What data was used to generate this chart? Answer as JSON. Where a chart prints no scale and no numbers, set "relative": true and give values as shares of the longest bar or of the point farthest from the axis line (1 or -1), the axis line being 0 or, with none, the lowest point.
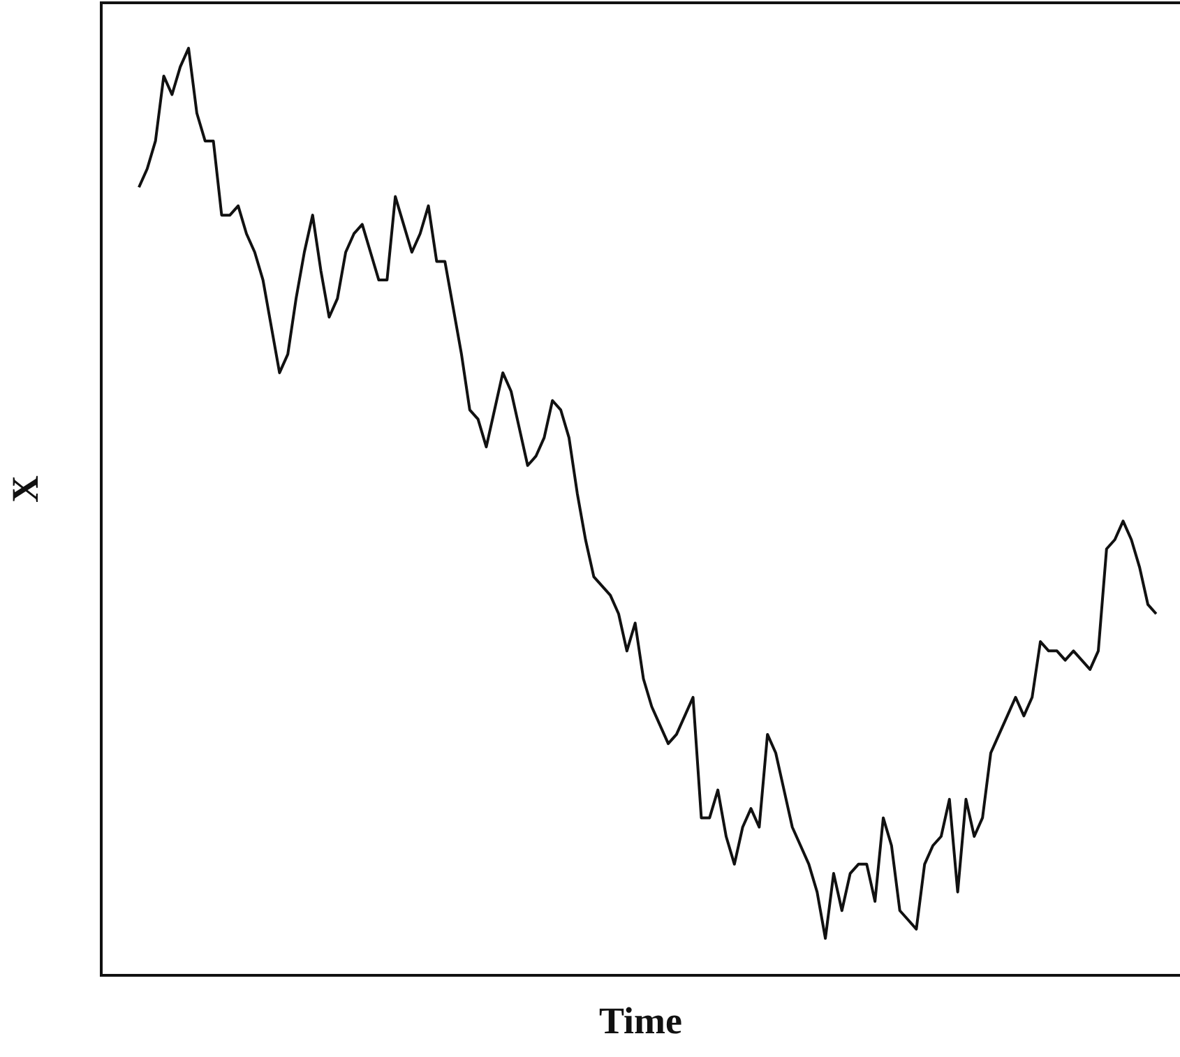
{
  "chart_data": {
    "type": "line",
    "xlabel": "Time",
    "ylabel": "X",
    "relative": true,
    "color": "#111111",
    "categories": [
      null,
      null,
      null,
      null,
      null,
      null,
      null,
      null,
      null,
      null,
      null,
      null,
      null,
      null,
      null,
      null,
      null,
      null,
      null,
      null,
      null,
      null,
      null,
      null,
      null,
      null,
      null,
      null,
      null,
      null,
      null,
      null,
      null,
      null,
      null,
      null,
      null,
      null,
      null,
      null,
      null,
      null,
      null,
      null,
      null,
      null,
      null,
      null,
      null,
      null,
      null,
      null,
      null,
      null,
      null,
      null,
      null,
      null,
      null,
      null,
      null,
      null,
      null,
      null,
      null,
      null,
      null,
      null,
      null,
      null,
      null,
      null,
      null,
      null,
      null,
      null,
      null,
      null,
      null,
      null,
      null,
      null,
      null,
      null,
      null,
      null,
      null,
      null,
      null,
      null,
      null,
      null,
      null,
      null,
      null,
      null,
      null,
      null,
      null,
      null,
      null,
      null,
      null,
      null,
      null,
      null,
      null,
      null,
      null,
      null,
      null,
      null,
      null,
      null,
      null,
      null,
      null,
      null,
      null,
      null,
      null,
      null,
      null,
      null
    ],
    "values": [
      0.85,
      0.87,
      0.9,
      0.97,
      0.95,
      0.98,
      1,
      0.93,
      0.9,
      0.9,
      0.82,
      0.82,
      0.83,
      0.8,
      0.78,
      0.75,
      0.7,
      0.65,
      0.67,
      0.73,
      0.78,
      0.82,
      0.76,
      0.71,
      0.73,
      0.78,
      0.8,
      0.81,
      0.78,
      0.75,
      0.75,
      0.84,
      0.81,
      0.78,
      0.8,
      0.83,
      0.77,
      0.77,
      0.72,
      0.67,
      0.61,
      0.6,
      0.57,
      0.61,
      0.65,
      0.63,
      0.59,
      0.55,
      0.56,
      0.58,
      0.62,
      0.61,
      0.58,
      0.52,
      0.47,
      0.43,
      0.42,
      0.41,
      0.39,
      0.35,
      0.38,
      0.32,
      0.29,
      0.27,
      0.25,
      0.26,
      0.28,
      0.3,
      0.17,
      0.17,
      0.2,
      0.15,
      0.12,
      0.16,
      0.18,
      0.16,
      0.26,
      0.24,
      0.2,
      0.16,
      0.14,
      0.12,
      0.09,
      0.04,
      0.11,
      0.07,
      0.11,
      0.12,
      0.12,
      0.08,
      0.17,
      0.14,
      0.07,
      0.06,
      0.05,
      0.12,
      0.14,
      0.15,
      0.19,
      0.09,
      0.19,
      0.15,
      0.17,
      0.24,
      0.26,
      0.28,
      0.3,
      0.28,
      0.3,
      0.36,
      0.35,
      0.35,
      0.34,
      0.35,
      0.34,
      0.33,
      0.35,
      0.46,
      0.47,
      0.49,
      0.47,
      0.44,
      0.4,
      0.39
    ]
  }
}
